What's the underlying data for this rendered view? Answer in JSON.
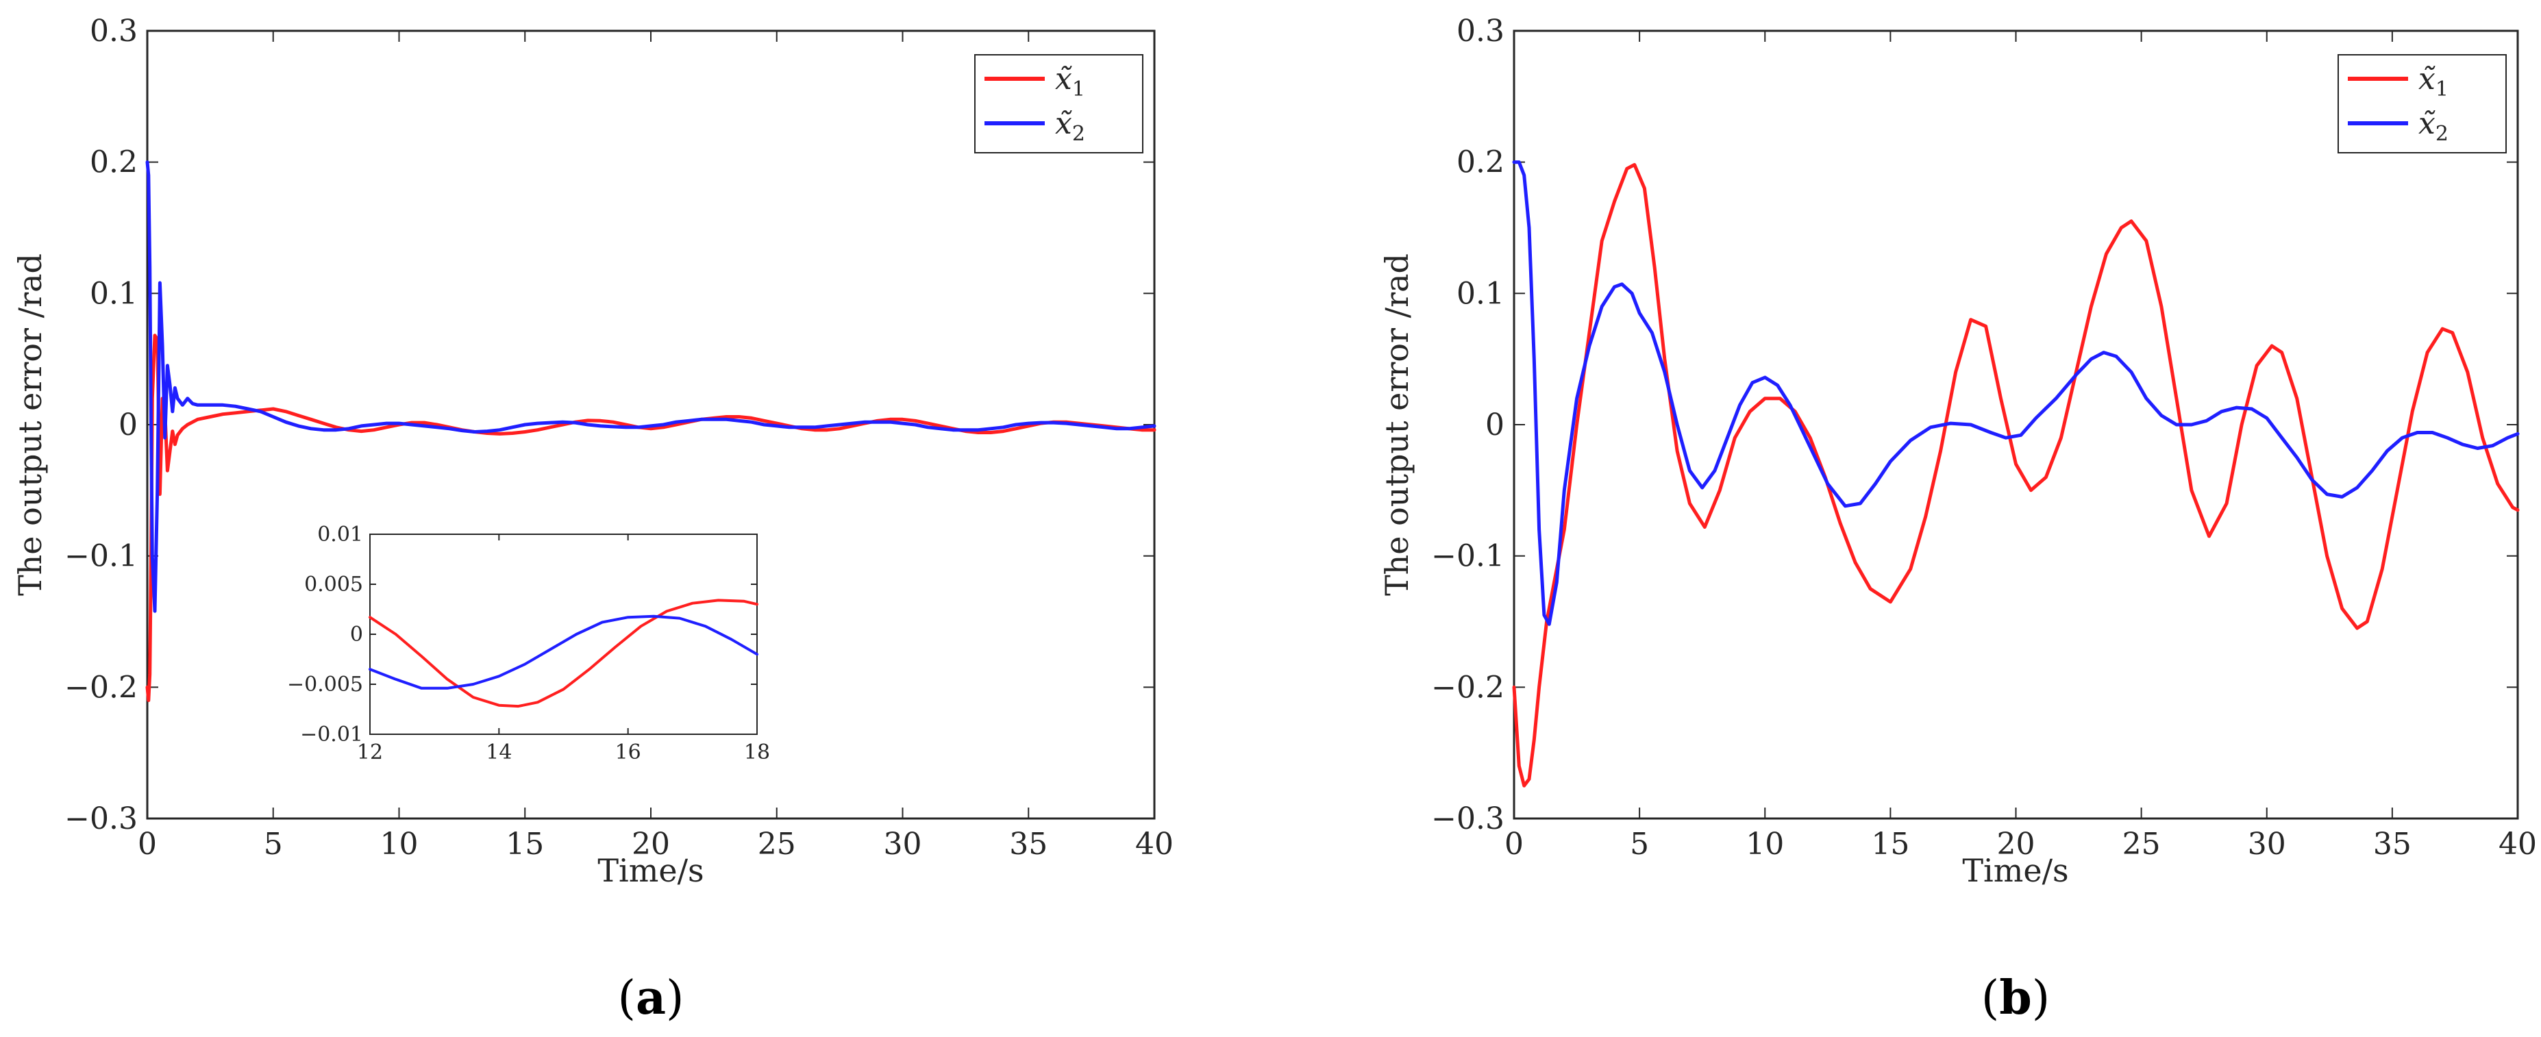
{
  "colors": {
    "series1": "#ff1f1f",
    "series2": "#1f1fff",
    "axis": "#262626",
    "background": "#ffffff"
  },
  "chart_data": [
    {
      "type": "line",
      "panel_label": "a",
      "title": "",
      "xlabel": "Time/s",
      "ylabel": "The output error /rad",
      "xlim": [
        0,
        40
      ],
      "ylim": [
        -0.3,
        0.3
      ],
      "xticks": [
        0,
        5,
        10,
        15,
        20,
        25,
        30,
        35,
        40
      ],
      "yticks": [
        -0.3,
        -0.2,
        -0.1,
        0,
        0.1,
        0.2,
        0.3
      ],
      "xtick_labels": [
        "0",
        "5",
        "10",
        "15",
        "20",
        "25",
        "30",
        "35",
        "40"
      ],
      "ytick_labels": [
        "−0.3",
        "−0.2",
        "−0.1",
        "0",
        "0.1",
        "0.2",
        "0.3"
      ],
      "grid": false,
      "legend_position": "top-right",
      "series": [
        {
          "name": "x̃",
          "name_sub": "1",
          "color": "#ff1f1f",
          "x": [
            0,
            0.05,
            0.1,
            0.15,
            0.2,
            0.3,
            0.4,
            0.5,
            0.6,
            0.7,
            0.8,
            0.9,
            1.0,
            1.1,
            1.2,
            1.4,
            1.6,
            1.8,
            2.0,
            2.5,
            3,
            3.5,
            4,
            4.5,
            5,
            5.5,
            6,
            6.5,
            7,
            7.5,
            8,
            8.5,
            9,
            9.5,
            10,
            10.5,
            11,
            11.5,
            12,
            12.5,
            13,
            13.5,
            14,
            14.5,
            15,
            15.5,
            16,
            16.5,
            17,
            17.5,
            18,
            18.5,
            19,
            19.5,
            20,
            20.5,
            21,
            21.5,
            22,
            22.5,
            23,
            23.5,
            24,
            24.5,
            25,
            25.5,
            26,
            26.5,
            27,
            27.5,
            28,
            28.5,
            29,
            29.5,
            30,
            30.5,
            31,
            31.5,
            32,
            32.5,
            33,
            33.5,
            34,
            34.5,
            35,
            35.5,
            36,
            36.5,
            37,
            37.5,
            38,
            38.5,
            39,
            39.5,
            40
          ],
          "values": [
            -0.2,
            -0.21,
            -0.19,
            -0.1,
            0.02,
            0.068,
            0.065,
            -0.053,
            0.02,
            0.01,
            -0.035,
            -0.02,
            -0.005,
            -0.015,
            -0.008,
            -0.003,
            0.0,
            0.002,
            0.004,
            0.006,
            0.008,
            0.009,
            0.01,
            0.011,
            0.012,
            0.01,
            0.007,
            0.004,
            0.001,
            -0.002,
            -0.004,
            -0.005,
            -0.004,
            -0.002,
            0.0,
            0.0015,
            0.0015,
            0.0,
            -0.002,
            -0.004,
            -0.0055,
            -0.0065,
            -0.007,
            -0.0065,
            -0.0055,
            -0.004,
            -0.002,
            0.0,
            0.002,
            0.0032,
            0.003,
            0.002,
            0.0,
            -0.002,
            -0.003,
            -0.002,
            0.0,
            0.002,
            0.004,
            0.005,
            0.006,
            0.006,
            0.005,
            0.003,
            0.001,
            -0.001,
            -0.003,
            -0.004,
            -0.004,
            -0.003,
            -0.001,
            0.001,
            0.003,
            0.004,
            0.004,
            0.003,
            0.001,
            -0.001,
            -0.003,
            -0.005,
            -0.006,
            -0.006,
            -0.005,
            -0.003,
            -0.001,
            0.001,
            0.002,
            0.002,
            0.001,
            0.0,
            -0.001,
            -0.002,
            -0.003,
            -0.004,
            -0.004
          ]
        },
        {
          "name": "x̃",
          "name_sub": "2",
          "color": "#1f1fff",
          "x": [
            0,
            0.05,
            0.1,
            0.15,
            0.2,
            0.3,
            0.4,
            0.5,
            0.6,
            0.7,
            0.8,
            0.9,
            1.0,
            1.1,
            1.2,
            1.4,
            1.6,
            1.8,
            2.0,
            2.5,
            3,
            3.5,
            4,
            4.5,
            5,
            5.5,
            6,
            6.5,
            7,
            7.5,
            8,
            8.5,
            9,
            9.5,
            10,
            10.5,
            11,
            11.5,
            12,
            12.5,
            13,
            13.5,
            14,
            14.5,
            15,
            15.5,
            16,
            16.5,
            17,
            17.5,
            18,
            18.5,
            19,
            19.5,
            20,
            20.5,
            21,
            21.5,
            22,
            22.5,
            23,
            23.5,
            24,
            24.5,
            25,
            25.5,
            26,
            26.5,
            27,
            27.5,
            28,
            28.5,
            29,
            29.5,
            30,
            30.5,
            31,
            31.5,
            32,
            32.5,
            33,
            33.5,
            34,
            34.5,
            35,
            35.5,
            36,
            36.5,
            37,
            37.5,
            38,
            38.5,
            39,
            39.5,
            40
          ],
          "values": [
            0.2,
            0.19,
            0.12,
            0.0,
            -0.1,
            -0.142,
            -0.05,
            0.108,
            0.06,
            -0.01,
            0.045,
            0.03,
            0.01,
            0.028,
            0.02,
            0.015,
            0.02,
            0.016,
            0.015,
            0.015,
            0.015,
            0.014,
            0.012,
            0.01,
            0.006,
            0.002,
            -0.001,
            -0.003,
            -0.004,
            -0.004,
            -0.003,
            -0.001,
            0.0,
            0.001,
            0.001,
            0.0,
            -0.001,
            -0.002,
            -0.003,
            -0.0045,
            -0.0055,
            -0.005,
            -0.004,
            -0.002,
            0.0,
            0.001,
            0.0015,
            0.002,
            0.0015,
            0.0,
            -0.001,
            -0.0015,
            -0.002,
            -0.002,
            -0.001,
            0.0,
            0.002,
            0.003,
            0.004,
            0.004,
            0.004,
            0.003,
            0.002,
            0.0,
            -0.001,
            -0.002,
            -0.002,
            -0.002,
            -0.001,
            0.0,
            0.001,
            0.002,
            0.002,
            0.002,
            0.001,
            0.0,
            -0.002,
            -0.003,
            -0.004,
            -0.004,
            -0.004,
            -0.003,
            -0.002,
            0.0,
            0.001,
            0.0015,
            0.0015,
            0.001,
            0.0,
            -0.001,
            -0.002,
            -0.003,
            -0.003,
            -0.002,
            -0.001
          ]
        }
      ],
      "inset": {
        "xlim": [
          12,
          18
        ],
        "ylim": [
          -0.01,
          0.01
        ],
        "xticks": [
          12,
          14,
          16,
          18
        ],
        "yticks": [
          -0.01,
          -0.005,
          0,
          0.005,
          0.01
        ],
        "xtick_labels": [
          "12",
          "14",
          "16",
          "18"
        ],
        "ytick_labels": [
          "−0.01",
          "−0.005",
          "0",
          "0.005",
          "0.01"
        ],
        "series": [
          {
            "color": "#ff1f1f",
            "x": [
              12,
              12.4,
              12.8,
              13.2,
              13.6,
              14.0,
              14.3,
              14.6,
              15.0,
              15.4,
              15.8,
              16.2,
              16.6,
              17.0,
              17.4,
              17.8,
              18
            ],
            "values": [
              0.0017,
              0.0,
              -0.0022,
              -0.0045,
              -0.0063,
              -0.0071,
              -0.0072,
              -0.0068,
              -0.0055,
              -0.0035,
              -0.0013,
              0.0008,
              0.0023,
              0.0031,
              0.0034,
              0.0033,
              0.003
            ]
          },
          {
            "color": "#1f1fff",
            "x": [
              12,
              12.4,
              12.8,
              13.2,
              13.6,
              14.0,
              14.4,
              14.8,
              15.2,
              15.6,
              16.0,
              16.4,
              16.8,
              17.2,
              17.6,
              18
            ],
            "values": [
              -0.0035,
              -0.0045,
              -0.0054,
              -0.0054,
              -0.005,
              -0.0042,
              -0.003,
              -0.0015,
              0.0,
              0.0012,
              0.0017,
              0.0018,
              0.0016,
              0.0008,
              -0.0005,
              -0.002
            ]
          }
        ]
      }
    },
    {
      "type": "line",
      "panel_label": "b",
      "title": "",
      "xlabel": "Time/s",
      "ylabel": "The output error /rad",
      "xlim": [
        0,
        40
      ],
      "ylim": [
        -0.3,
        0.3
      ],
      "xticks": [
        0,
        5,
        10,
        15,
        20,
        25,
        30,
        35,
        40
      ],
      "yticks": [
        -0.3,
        -0.2,
        -0.1,
        0,
        0.1,
        0.2,
        0.3
      ],
      "xtick_labels": [
        "0",
        "5",
        "10",
        "15",
        "20",
        "25",
        "30",
        "35",
        "40"
      ],
      "ytick_labels": [
        "−0.3",
        "−0.2",
        "−0.1",
        "0",
        "0.1",
        "0.2",
        "0.3"
      ],
      "grid": false,
      "legend_position": "top-right",
      "series": [
        {
          "name": "x̃",
          "name_sub": "1",
          "color": "#ff1f1f",
          "x": [
            0,
            0.2,
            0.4,
            0.6,
            0.8,
            1.0,
            1.3,
            1.6,
            2.0,
            2.5,
            3.0,
            3.5,
            4.0,
            4.5,
            4.8,
            5.2,
            5.6,
            6.0,
            6.5,
            7.0,
            7.6,
            8.2,
            8.8,
            9.4,
            10.0,
            10.6,
            11.2,
            11.8,
            12.4,
            13.0,
            13.6,
            14.2,
            15.0,
            15.8,
            16.4,
            17.0,
            17.6,
            18.2,
            18.8,
            19.4,
            20.0,
            20.6,
            21.2,
            21.8,
            22.4,
            23.0,
            23.6,
            24.2,
            24.6,
            25.2,
            25.8,
            26.4,
            27.0,
            27.7,
            28.4,
            29.0,
            29.6,
            30.2,
            30.6,
            31.2,
            31.8,
            32.4,
            33.0,
            33.6,
            34.0,
            34.6,
            35.2,
            35.8,
            36.4,
            37.0,
            37.4,
            38.0,
            38.6,
            39.2,
            39.8,
            40.0
          ],
          "values": [
            -0.2,
            -0.26,
            -0.275,
            -0.27,
            -0.24,
            -0.2,
            -0.15,
            -0.12,
            -0.08,
            0.0,
            0.07,
            0.14,
            0.17,
            0.195,
            0.198,
            0.18,
            0.12,
            0.05,
            -0.02,
            -0.06,
            -0.078,
            -0.05,
            -0.01,
            0.01,
            0.02,
            0.02,
            0.01,
            -0.01,
            -0.04,
            -0.075,
            -0.105,
            -0.125,
            -0.135,
            -0.11,
            -0.07,
            -0.02,
            0.04,
            0.08,
            0.075,
            0.02,
            -0.03,
            -0.05,
            -0.04,
            -0.01,
            0.04,
            0.09,
            0.13,
            0.15,
            0.155,
            0.14,
            0.09,
            0.02,
            -0.05,
            -0.085,
            -0.06,
            0.0,
            0.045,
            0.06,
            0.055,
            0.02,
            -0.04,
            -0.1,
            -0.14,
            -0.155,
            -0.15,
            -0.11,
            -0.05,
            0.01,
            0.055,
            0.073,
            0.07,
            0.04,
            -0.01,
            -0.045,
            -0.063,
            -0.065
          ]
        },
        {
          "name": "x̃",
          "name_sub": "2",
          "color": "#1f1fff",
          "x": [
            0,
            0.2,
            0.4,
            0.6,
            0.8,
            1.0,
            1.2,
            1.4,
            1.7,
            2.0,
            2.5,
            3.0,
            3.5,
            4.0,
            4.3,
            4.7,
            5.0,
            5.5,
            6.0,
            6.5,
            7.0,
            7.5,
            8.0,
            8.5,
            9.0,
            9.5,
            10.0,
            10.5,
            11.0,
            11.5,
            12.0,
            12.5,
            13.2,
            13.8,
            14.4,
            15.0,
            15.8,
            16.6,
            17.4,
            18.2,
            19.0,
            19.6,
            20.2,
            20.8,
            21.6,
            22.4,
            23.0,
            23.5,
            24.0,
            24.6,
            25.2,
            25.8,
            26.4,
            27.0,
            27.6,
            28.2,
            28.8,
            29.4,
            30.0,
            30.6,
            31.2,
            31.8,
            32.4,
            33.0,
            33.6,
            34.2,
            34.8,
            35.4,
            36.0,
            36.6,
            37.2,
            37.8,
            38.4,
            39.0,
            39.6,
            40.0
          ],
          "values": [
            0.2,
            0.2,
            0.19,
            0.15,
            0.05,
            -0.08,
            -0.145,
            -0.152,
            -0.12,
            -0.05,
            0.02,
            0.06,
            0.09,
            0.105,
            0.107,
            0.1,
            0.085,
            0.07,
            0.04,
            0.0,
            -0.035,
            -0.048,
            -0.035,
            -0.01,
            0.015,
            0.032,
            0.036,
            0.03,
            0.015,
            -0.005,
            -0.025,
            -0.045,
            -0.062,
            -0.06,
            -0.045,
            -0.028,
            -0.012,
            -0.002,
            0.001,
            0.0,
            -0.006,
            -0.01,
            -0.008,
            0.005,
            0.02,
            0.038,
            0.05,
            0.055,
            0.052,
            0.04,
            0.02,
            0.007,
            0.0,
            0.0,
            0.003,
            0.01,
            0.013,
            0.012,
            0.005,
            -0.01,
            -0.025,
            -0.042,
            -0.053,
            -0.055,
            -0.048,
            -0.035,
            -0.02,
            -0.01,
            -0.006,
            -0.006,
            -0.01,
            -0.015,
            -0.018,
            -0.016,
            -0.01,
            -0.007
          ]
        }
      ]
    }
  ]
}
